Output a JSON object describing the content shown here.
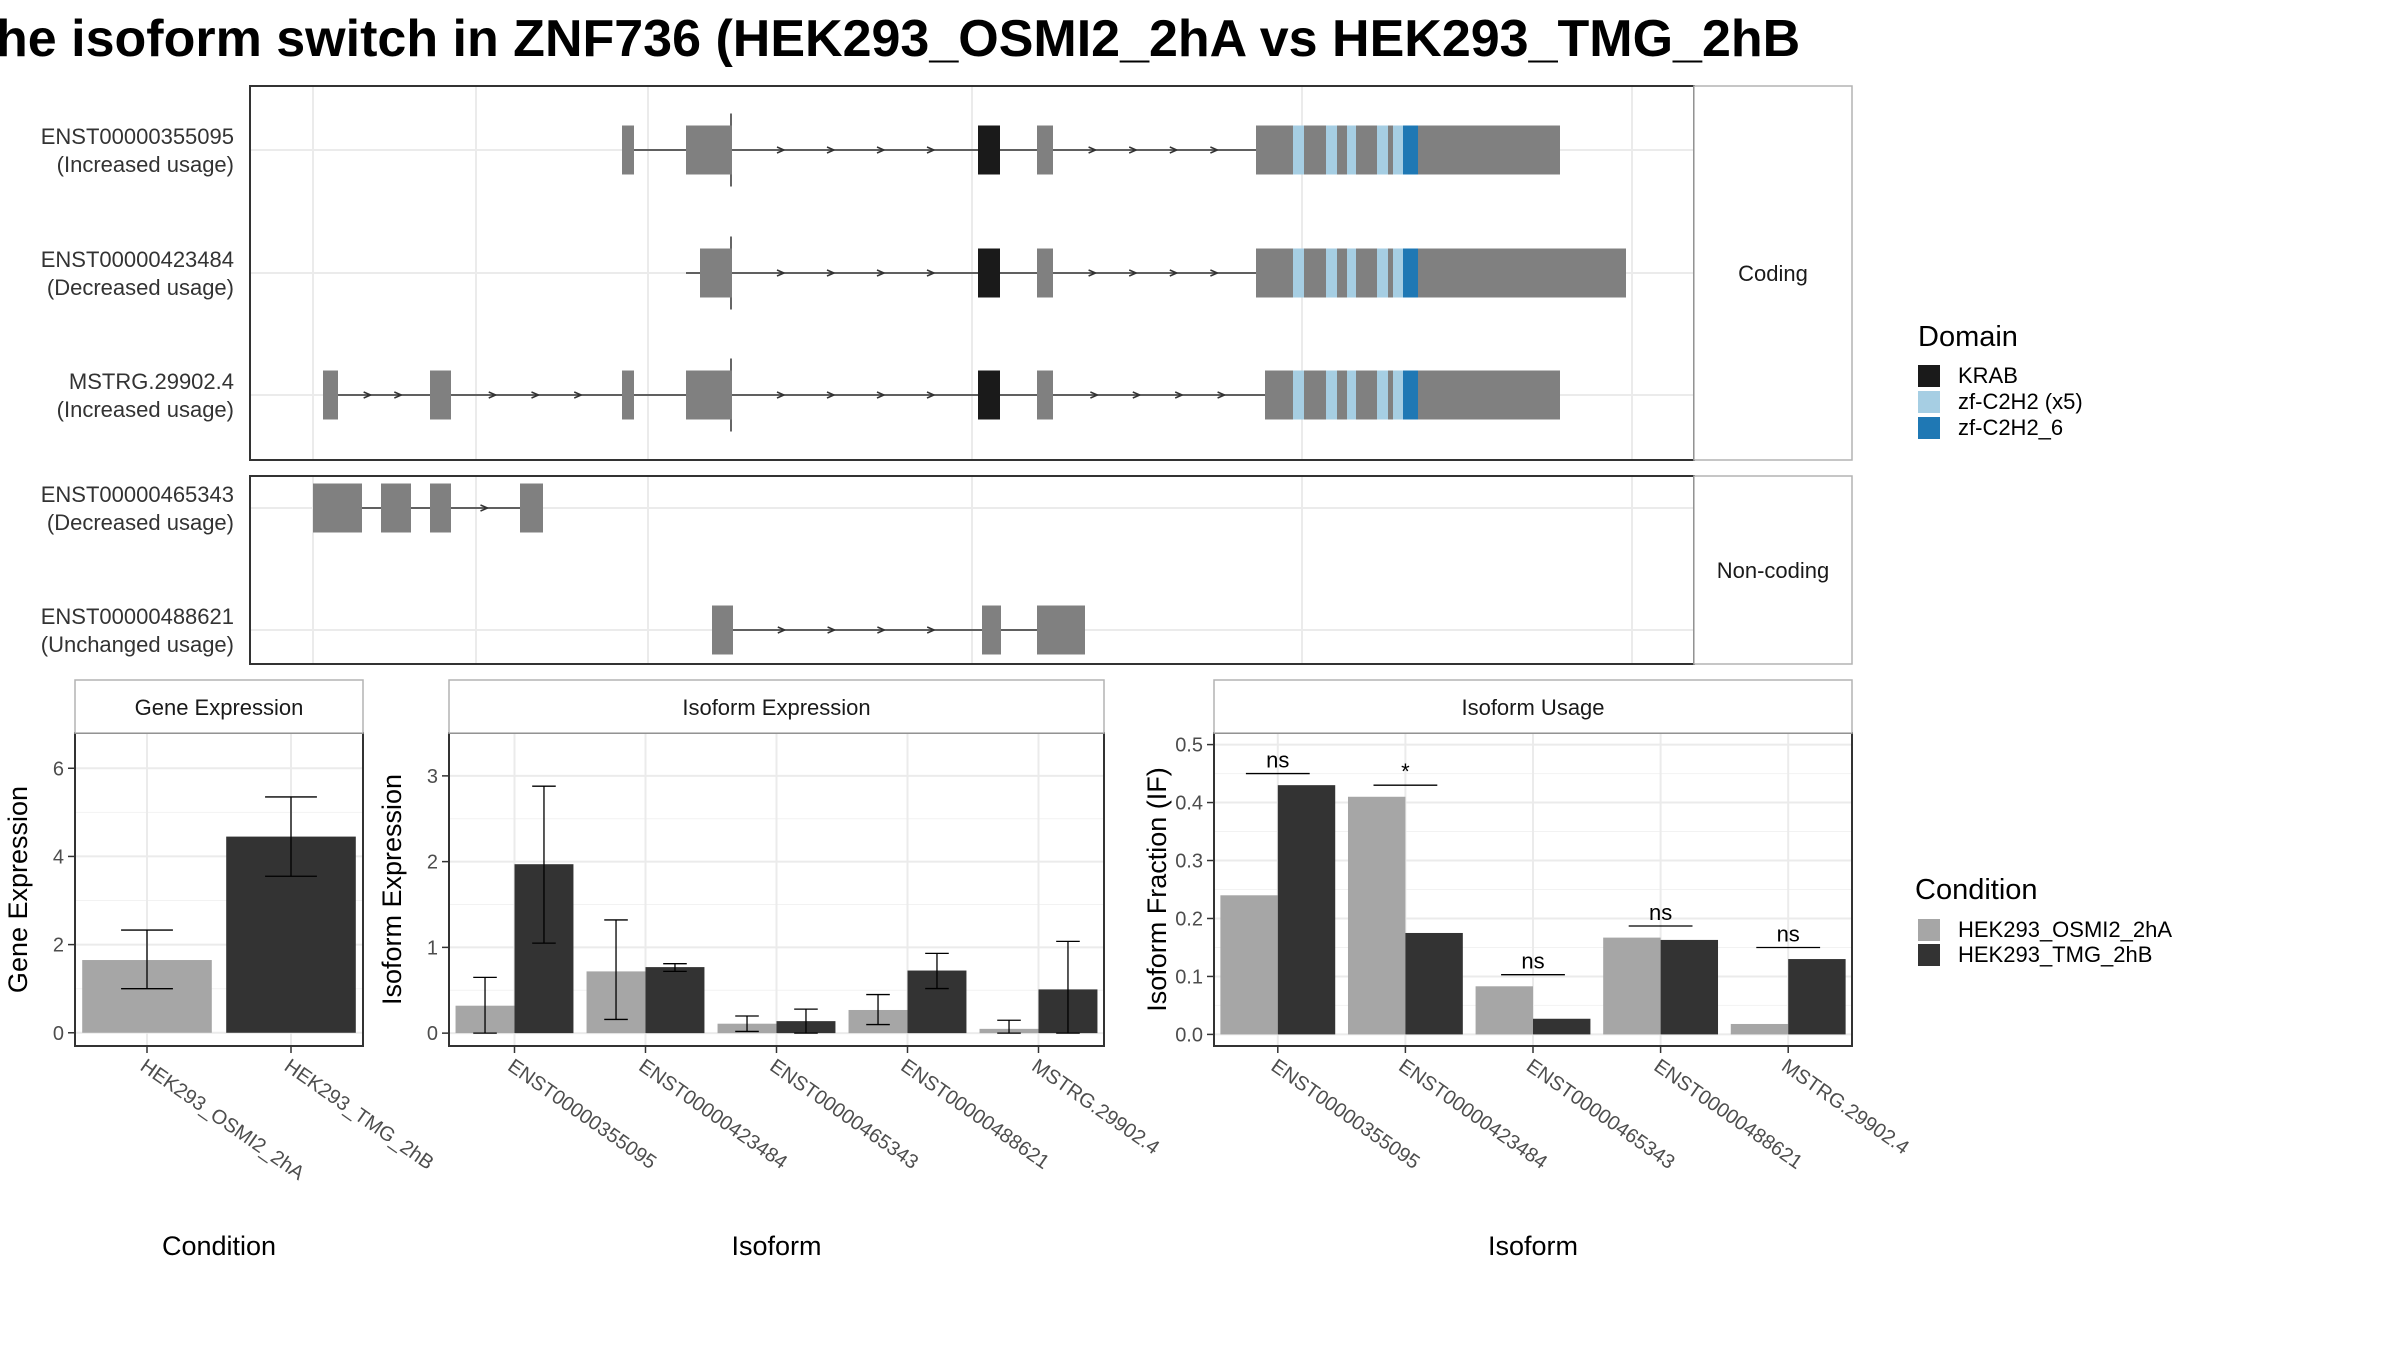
{
  "title": "he isoform switch in ZNF736 (HEK293_OSMI2_2hA vs HEK293_TMG_2hB",
  "colors": {
    "exon": "#808080",
    "intron": "#333333",
    "KRAB": "#1a1a1a",
    "zf-C2H2 (x5)": "#a6cee3",
    "zf-C2H2_6": "#1f78b4",
    "HEK293_OSMI2_2hA": "#a6a6a6",
    "HEK293_TMG_2hB": "#333333",
    "grid": "#ebebeb",
    "panel_border": "#333333",
    "strip_border": "#b3b3b3"
  },
  "structure": {
    "facets": [
      {
        "label": "Coding",
        "transcripts": [
          {
            "label": "ENST00000355095\n(Increased usage)"
          },
          {
            "label": "ENST00000423484\n(Decreased usage)"
          },
          {
            "label": "MSTRG.29902.4\n(Increased usage)"
          }
        ]
      },
      {
        "label": "Non-coding",
        "transcripts": [
          {
            "label": "ENST00000465343\n(Decreased usage)"
          },
          {
            "label": "ENST00000488621\n(Unchanged usage)"
          }
        ]
      }
    ],
    "domain_legend": {
      "title": "Domain",
      "items": [
        {
          "label": "KRAB",
          "color": "#1a1a1a"
        },
        {
          "label": "zf-C2H2 (x5)",
          "color": "#a6cee3"
        },
        {
          "label": "zf-C2H2_6",
          "color": "#1f78b4"
        }
      ]
    }
  },
  "chart_data": [
    {
      "type": "bar",
      "title": "Gene Expression",
      "xlabel": "Condition",
      "ylabel": "Gene Expression",
      "categories": [
        "HEK293_OSMI2_2hA",
        "HEK293_TMG_2hB"
      ],
      "values": [
        1.65,
        4.45
      ],
      "error": [
        [
          1.0,
          2.33
        ],
        [
          3.55,
          5.35
        ]
      ],
      "ylim": [
        -0.3,
        6.8
      ],
      "yticks": [
        0,
        2,
        4,
        6
      ],
      "grid": true
    },
    {
      "type": "bar",
      "title": "Isoform Expression",
      "xlabel": "Isoform",
      "ylabel": "Isoform Expression",
      "categories": [
        "ENST00000355095",
        "ENST00000423484",
        "ENST00000465343",
        "ENST00000488621",
        "MSTRG.29902.4"
      ],
      "series": [
        {
          "name": "HEK293_OSMI2_2hA",
          "values": [
            0.32,
            0.72,
            0.11,
            0.27,
            0.05
          ],
          "error": [
            [
              0.0,
              0.65
            ],
            [
              0.16,
              1.32
            ],
            [
              0.02,
              0.2
            ],
            [
              0.1,
              0.45
            ],
            [
              0.0,
              0.15
            ]
          ]
        },
        {
          "name": "HEK293_TMG_2hB",
          "values": [
            1.97,
            0.77,
            0.14,
            0.73,
            0.51
          ],
          "error": [
            [
              1.05,
              2.88
            ],
            [
              0.72,
              0.81
            ],
            [
              0.0,
              0.28
            ],
            [
              0.52,
              0.93
            ],
            [
              0.0,
              1.07
            ]
          ]
        }
      ],
      "ylim": [
        -0.15,
        3.5
      ],
      "yticks": [
        0,
        1,
        2,
        3
      ],
      "grid": true
    },
    {
      "type": "bar",
      "title": "Isoform Usage",
      "xlabel": "Isoform",
      "ylabel": "Isoform Fraction (IF)",
      "categories": [
        "ENST00000355095",
        "ENST00000423484",
        "ENST00000465343",
        "ENST00000488621",
        "MSTRG.29902.4"
      ],
      "series": [
        {
          "name": "HEK293_OSMI2_2hA",
          "values": [
            0.24,
            0.41,
            0.083,
            0.167,
            0.018
          ]
        },
        {
          "name": "HEK293_TMG_2hB",
          "values": [
            0.43,
            0.175,
            0.027,
            0.163,
            0.13
          ]
        }
      ],
      "significance": [
        "ns",
        "*",
        "ns",
        "ns",
        "ns"
      ],
      "ylim": [
        -0.02,
        0.52
      ],
      "yticks": [
        0.0,
        0.1,
        0.2,
        0.3,
        0.4,
        0.5
      ],
      "ytick_labels": [
        "0.0",
        "0.1",
        "0.2",
        "0.3",
        "0.4",
        "0.5"
      ],
      "grid": true
    }
  ],
  "condition_legend": {
    "title": "Condition",
    "items": [
      {
        "label": "HEK293_OSMI2_2hA",
        "color": "#a6a6a6"
      },
      {
        "label": "HEK293_TMG_2hB",
        "color": "#333333"
      }
    ]
  }
}
